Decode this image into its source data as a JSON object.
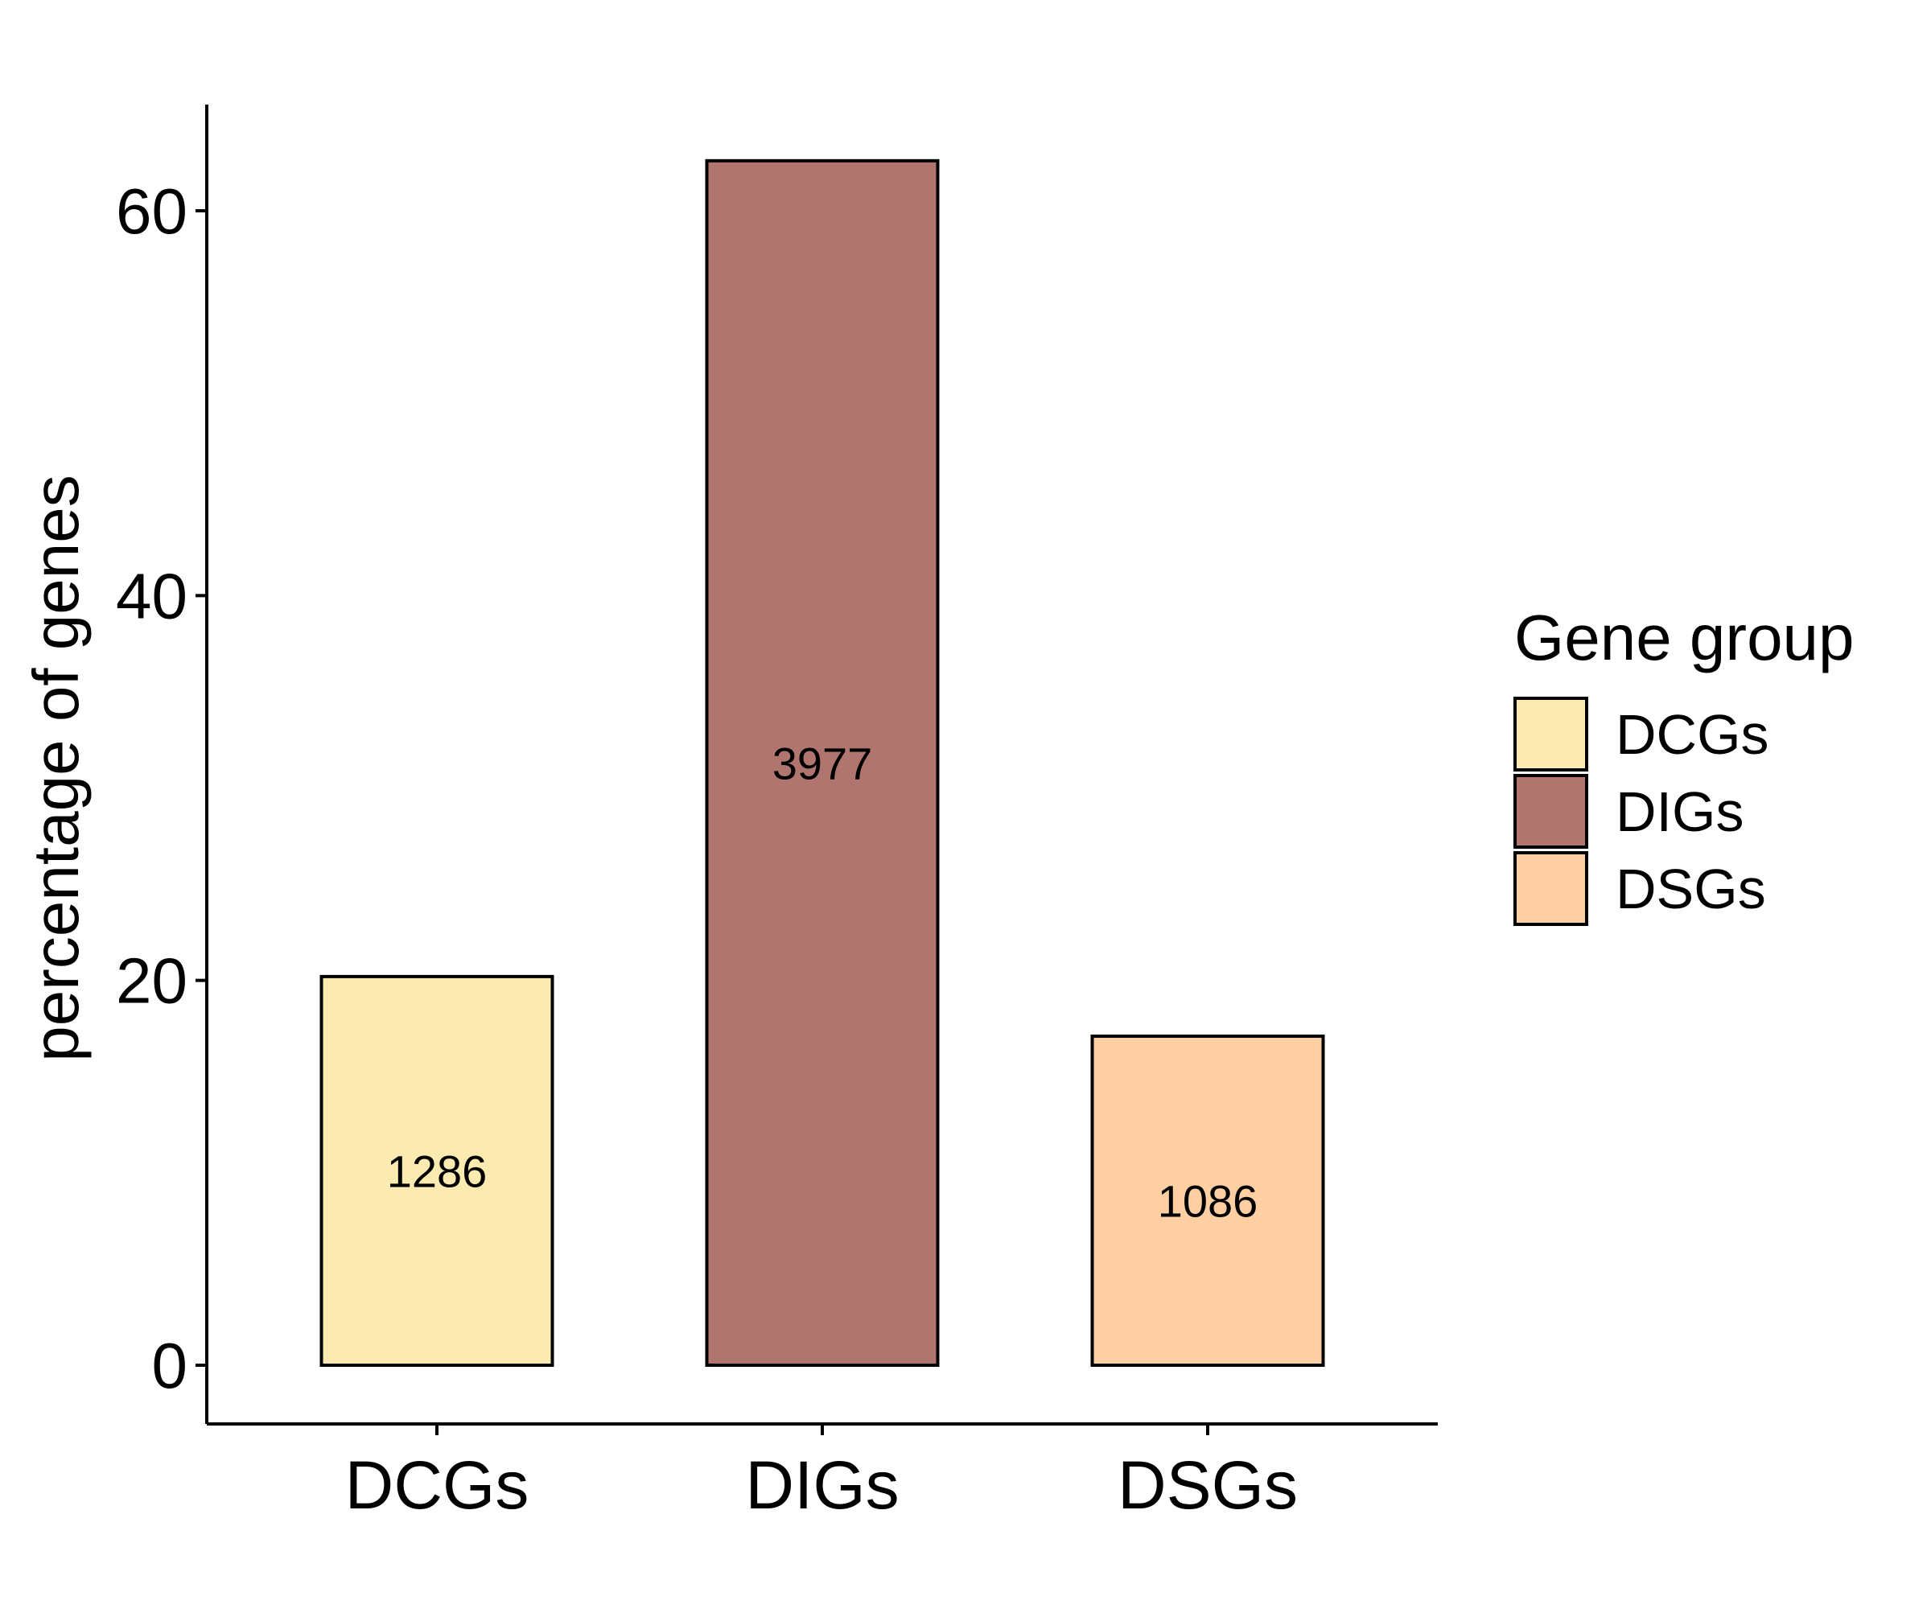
{
  "chart_data": {
    "type": "bar",
    "title": "",
    "xlabel": "",
    "ylabel": "percentage of genes",
    "categories": [
      "DCGs",
      "DIGs",
      "DSGs"
    ],
    "values": [
      20.2,
      62.6,
      17.1
    ],
    "data_labels": [
      "1286",
      "3977",
      "1086"
    ],
    "colors": [
      "#FCEBB0",
      "#AF756E",
      "#FECFA3"
    ],
    "ylim": [
      -3,
      65.5
    ],
    "yticks": [
      0,
      20,
      40,
      60
    ],
    "grid": false,
    "legend": {
      "title": "Gene group",
      "position": "right",
      "items": [
        "DCGs",
        "DIGs",
        "DSGs"
      ]
    }
  }
}
